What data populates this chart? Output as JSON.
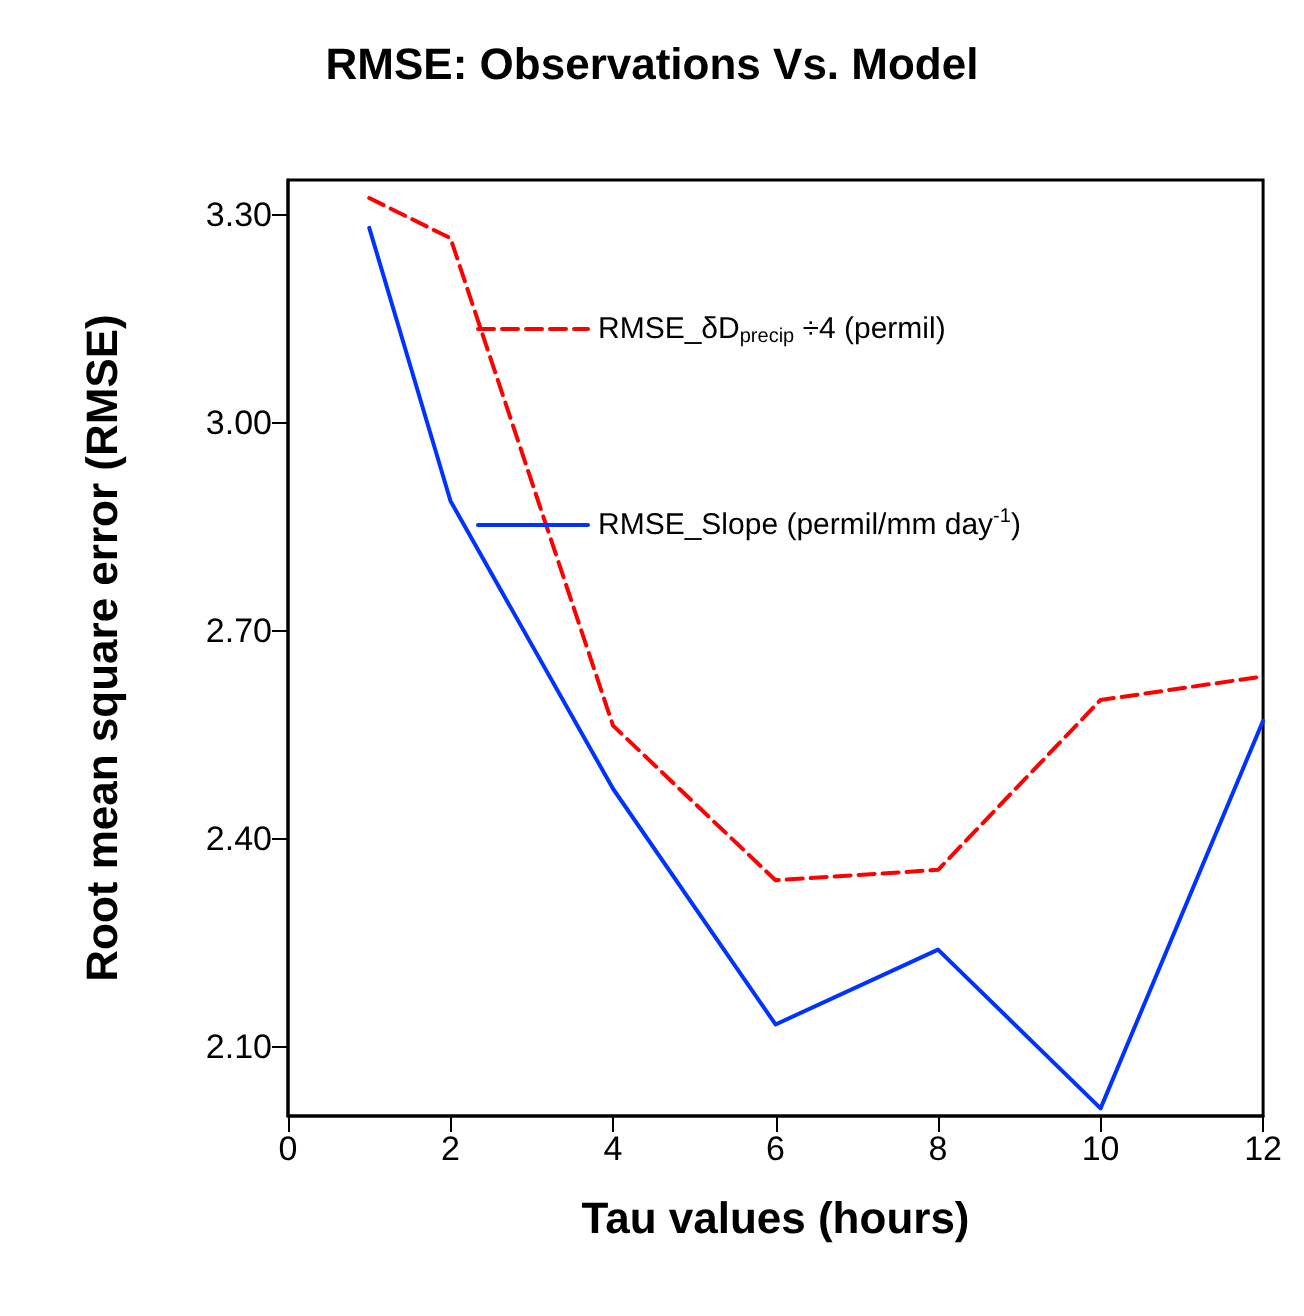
{
  "chart_data": {
    "type": "line",
    "title": "RMSE: Observations Vs. Model",
    "xlabel": "Tau values (hours)",
    "ylabel": "Root mean square error (RMSE)",
    "x": [
      1,
      2,
      4,
      6,
      8,
      10,
      12
    ],
    "series": [
      {
        "name": "RMSE_δD$_{precip}$ ÷4 (permil)",
        "color": "#ff0000",
        "line_style": "dashed",
        "values": [
          3.324,
          3.266,
          2.563,
          2.34,
          2.355,
          2.6,
          2.634
        ]
      },
      {
        "name": "RMSE_Slope (permil/mm day$^{-1}$)",
        "color": "#0033ff",
        "line_style": "solid",
        "values": [
          3.281,
          2.887,
          2.472,
          2.132,
          2.24,
          2.011,
          2.57
        ]
      }
    ],
    "xlim": [
      0,
      12
    ],
    "xticks": [
      0,
      2,
      4,
      6,
      8,
      10,
      12
    ],
    "ylim": [
      2.0,
      3.35
    ],
    "yticks": [
      {
        "value": 2.1,
        "label": "2.10"
      },
      {
        "value": 2.4,
        "label": "2.40"
      },
      {
        "value": 2.7,
        "label": "2.70"
      },
      {
        "value": 3.0,
        "label": "3.00"
      },
      {
        "value": 3.3,
        "label": "3.30"
      }
    ],
    "legend": "top left",
    "grid": false,
    "marker": "none"
  }
}
